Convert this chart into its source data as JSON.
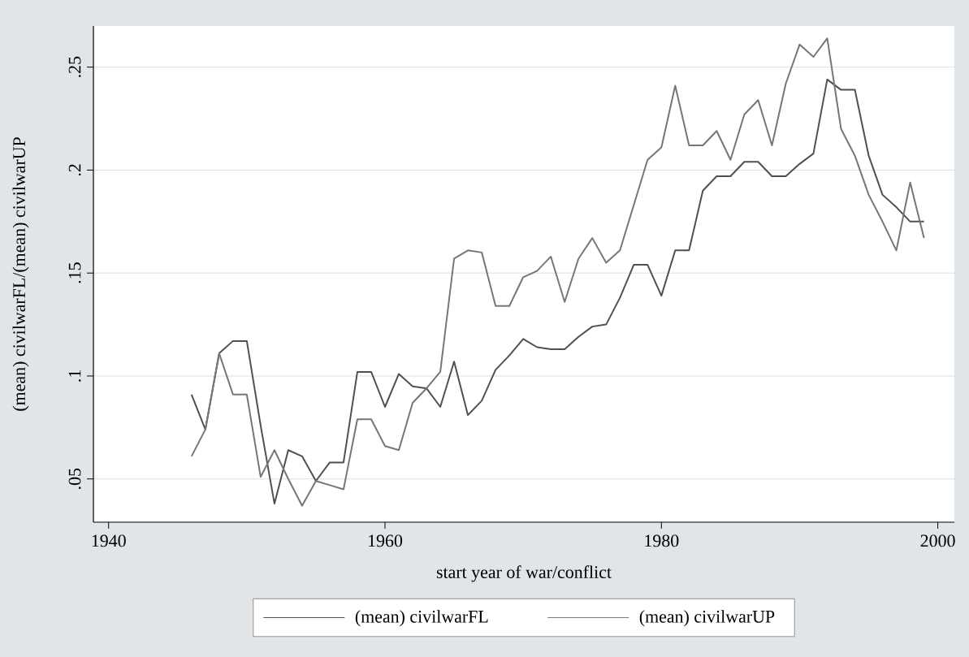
{
  "chart_data": {
    "type": "line",
    "xlabel": "start year of war/conflict",
    "ylabel": "(mean) civilwarFL/(mean) civilwarUP",
    "x": [
      1946,
      1947,
      1948,
      1949,
      1950,
      1951,
      1952,
      1953,
      1954,
      1955,
      1956,
      1957,
      1958,
      1959,
      1960,
      1961,
      1962,
      1963,
      1964,
      1965,
      1966,
      1967,
      1968,
      1969,
      1970,
      1971,
      1972,
      1973,
      1974,
      1975,
      1976,
      1977,
      1978,
      1979,
      1980,
      1981,
      1982,
      1983,
      1984,
      1985,
      1986,
      1987,
      1988,
      1989,
      1990,
      1991,
      1992,
      1993,
      1994,
      1995,
      1996,
      1997,
      1998,
      1999
    ],
    "series": [
      {
        "name": "(mean) civilwarFL",
        "color": "#505050",
        "values": [
          0.091,
          0.074,
          0.111,
          0.117,
          0.117,
          0.076,
          0.038,
          0.064,
          0.061,
          0.049,
          0.058,
          0.058,
          0.102,
          0.102,
          0.085,
          0.101,
          0.095,
          0.094,
          0.085,
          0.107,
          0.081,
          0.088,
          0.103,
          0.11,
          0.118,
          0.114,
          0.113,
          0.113,
          0.119,
          0.124,
          0.125,
          0.138,
          0.154,
          0.154,
          0.139,
          0.161,
          0.161,
          0.19,
          0.197,
          0.197,
          0.204,
          0.204,
          0.197,
          0.197,
          0.203,
          0.208,
          0.244,
          0.239,
          0.239,
          0.207,
          0.188,
          0.182,
          0.175,
          0.175
        ]
      },
      {
        "name": "(mean) civilwarUP",
        "color": "#767676",
        "values": [
          0.061,
          0.074,
          0.111,
          0.091,
          0.091,
          0.051,
          0.064,
          0.05,
          0.037,
          0.049,
          0.047,
          0.045,
          0.079,
          0.079,
          0.066,
          0.064,
          0.087,
          0.094,
          0.102,
          0.157,
          0.161,
          0.16,
          0.134,
          0.134,
          0.148,
          0.151,
          0.158,
          0.136,
          0.157,
          0.167,
          0.155,
          0.161,
          0.183,
          0.205,
          0.211,
          0.241,
          0.212,
          0.212,
          0.219,
          0.205,
          0.227,
          0.234,
          0.212,
          0.242,
          0.261,
          0.255,
          0.264,
          0.22,
          0.207,
          0.188,
          0.175,
          0.161,
          0.194,
          0.167
        ]
      }
    ],
    "xlim": [
      1938.9,
      2001.2
    ],
    "ylim": [
      0.029,
      0.27
    ],
    "xticks": [
      1940,
      1960,
      1980,
      2000
    ],
    "yticks": [
      {
        "value": 0.05,
        "label": ".05"
      },
      {
        "value": 0.1,
        "label": ".1"
      },
      {
        "value": 0.15,
        "label": ".15"
      },
      {
        "value": 0.2,
        "label": ".2"
      },
      {
        "value": 0.25,
        "label": ".25"
      }
    ],
    "grid": "y",
    "legend": "bottom"
  }
}
